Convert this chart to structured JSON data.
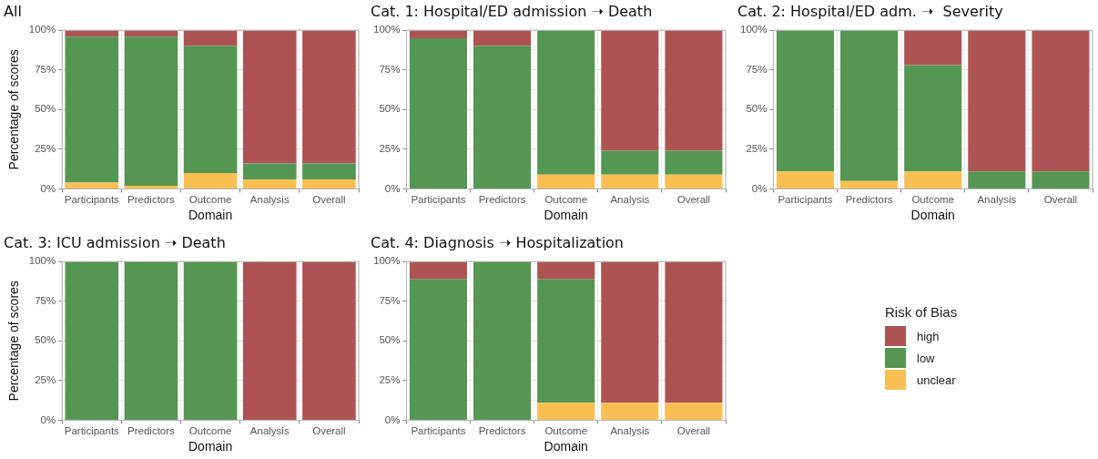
{
  "chart_data": [
    {
      "type": "bar",
      "title": "All",
      "xlabel": "Domain",
      "ylabel": "Percentage of scores",
      "legend": "right",
      "legend_title": "Risk of Bias",
      "categories": [
        "Participants",
        "Predictors",
        "Outcome",
        "Analysis",
        "Overall"
      ],
      "stacked": true,
      "grid": true,
      "ylim": [
        0,
        100
      ],
      "yticks": [
        {
          "value": 0,
          "label": "0%"
        },
        {
          "value": 25,
          "label": "25%"
        },
        {
          "value": 50,
          "label": "50%"
        },
        {
          "value": 75,
          "label": "75%"
        },
        {
          "value": 100,
          "label": "100%"
        }
      ],
      "series": [
        {
          "name": "unclear",
          "color": "#f9bf52",
          "values": [
            4,
            2,
            10,
            6,
            6
          ]
        },
        {
          "name": "low",
          "color": "#559652",
          "values": [
            92,
            94,
            80,
            10,
            10
          ]
        },
        {
          "name": "high",
          "color": "#ae5353",
          "values": [
            4,
            4,
            10,
            84,
            84
          ]
        }
      ]
    },
    {
      "type": "bar",
      "title": "Cat. 1: Hospital/ED admission ➝ Death",
      "xlabel": "Domain",
      "categories": [
        "Participants",
        "Predictors",
        "Outcome",
        "Analysis",
        "Overall"
      ],
      "stacked": true,
      "grid": true,
      "ylim": [
        0,
        100
      ],
      "yticks": [
        {
          "value": 0,
          "label": "0%"
        },
        {
          "value": 25,
          "label": "25%"
        },
        {
          "value": 50,
          "label": "50%"
        },
        {
          "value": 75,
          "label": "75%"
        },
        {
          "value": 100,
          "label": "100%"
        }
      ],
      "series": [
        {
          "color": "#f9bf52",
          "values": [
            0,
            0,
            9,
            9,
            9
          ]
        },
        {
          "color": "#559652",
          "values": [
            95,
            90,
            91,
            15,
            15
          ]
        },
        {
          "color": "#ae5353",
          "values": [
            5,
            10,
            0,
            76,
            76
          ]
        }
      ]
    },
    {
      "type": "bar",
      "title": "Cat. 2: Hospital/ED adm. ➝  Severity",
      "xlabel": "Domain",
      "categories": [
        "Participants",
        "Predictors",
        "Outcome",
        "Analysis",
        "Overall"
      ],
      "stacked": true,
      "grid": true,
      "ylim": [
        0,
        100
      ],
      "yticks": [
        {
          "value": 0,
          "label": "0%"
        },
        {
          "value": 25,
          "label": "25%"
        },
        {
          "value": 50,
          "label": "50%"
        },
        {
          "value": 75,
          "label": "75%"
        },
        {
          "value": 100,
          "label": "100%"
        }
      ],
      "series": [
        {
          "color": "#f9bf52",
          "values": [
            11,
            5,
            11,
            0,
            0
          ]
        },
        {
          "color": "#559652",
          "values": [
            89,
            95,
            67,
            11,
            11
          ]
        },
        {
          "color": "#ae5353",
          "values": [
            0,
            0,
            22,
            89,
            89
          ]
        }
      ]
    },
    {
      "type": "bar",
      "title": "Cat. 3: ICU admission ➝ Death",
      "xlabel": "Domain",
      "ylabel": "Percentage of scores",
      "categories": [
        "Participants",
        "Predictors",
        "Outcome",
        "Analysis",
        "Overall"
      ],
      "stacked": true,
      "grid": true,
      "ylim": [
        0,
        100
      ],
      "yticks": [
        {
          "value": 0,
          "label": "0%"
        },
        {
          "value": 25,
          "label": "25%"
        },
        {
          "value": 50,
          "label": "50%"
        },
        {
          "value": 75,
          "label": "75%"
        },
        {
          "value": 100,
          "label": "100%"
        }
      ],
      "series": [
        {
          "color": "#f9bf52",
          "values": [
            0,
            0,
            0,
            0,
            0
          ]
        },
        {
          "color": "#559652",
          "values": [
            100,
            100,
            100,
            0,
            0
          ]
        },
        {
          "color": "#ae5353",
          "values": [
            0,
            0,
            0,
            100,
            100
          ]
        }
      ]
    },
    {
      "type": "bar",
      "title": "Cat. 4: Diagnosis ➝ Hospitalization",
      "xlabel": "Domain",
      "categories": [
        "Participants",
        "Predictors",
        "Outcome",
        "Analysis",
        "Overall"
      ],
      "stacked": true,
      "grid": true,
      "ylim": [
        0,
        100
      ],
      "yticks": [
        {
          "value": 0,
          "label": "0%"
        },
        {
          "value": 25,
          "label": "25%"
        },
        {
          "value": 50,
          "label": "50%"
        },
        {
          "value": 75,
          "label": "75%"
        },
        {
          "value": 100,
          "label": "100%"
        }
      ],
      "series": [
        {
          "color": "#f9bf52",
          "values": [
            0,
            0,
            11,
            11,
            11
          ]
        },
        {
          "color": "#559652",
          "values": [
            89,
            100,
            78,
            0,
            0
          ]
        },
        {
          "color": "#ae5353",
          "values": [
            11,
            0,
            11,
            89,
            89
          ]
        }
      ]
    }
  ]
}
